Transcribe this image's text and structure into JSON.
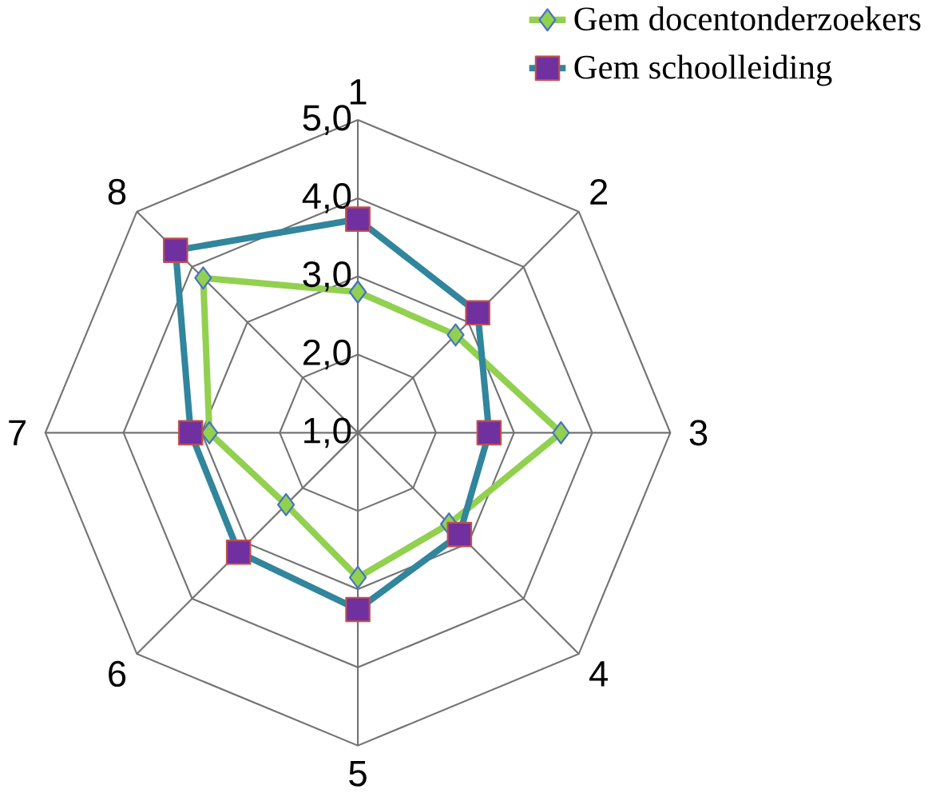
{
  "chart_data": {
    "type": "radar",
    "categories": [
      "1",
      "2",
      "3",
      "4",
      "5",
      "6",
      "7",
      "8"
    ],
    "series": [
      {
        "name": "Gem docentonderzoekers",
        "color": "#92d050",
        "marker": "diamond",
        "values": [
          2.8,
          2.77,
          3.6,
          2.65,
          2.85,
          2.3,
          2.9,
          3.8
        ]
      },
      {
        "name": "Gem schoolleiding",
        "color": "#31859c",
        "marker": "square",
        "values": [
          3.73,
          3.17,
          2.68,
          2.84,
          3.26,
          3.16,
          3.14,
          4.3
        ]
      }
    ],
    "ylim": [
      1,
      5
    ],
    "yticks": [
      {
        "value": 1,
        "label": "1,0"
      },
      {
        "value": 2,
        "label": "2,0"
      },
      {
        "value": 3,
        "label": "3,0"
      },
      {
        "value": 4,
        "label": "4,0"
      },
      {
        "value": 5,
        "label": "5,0"
      }
    ],
    "grid": true,
    "legend": "top right"
  }
}
